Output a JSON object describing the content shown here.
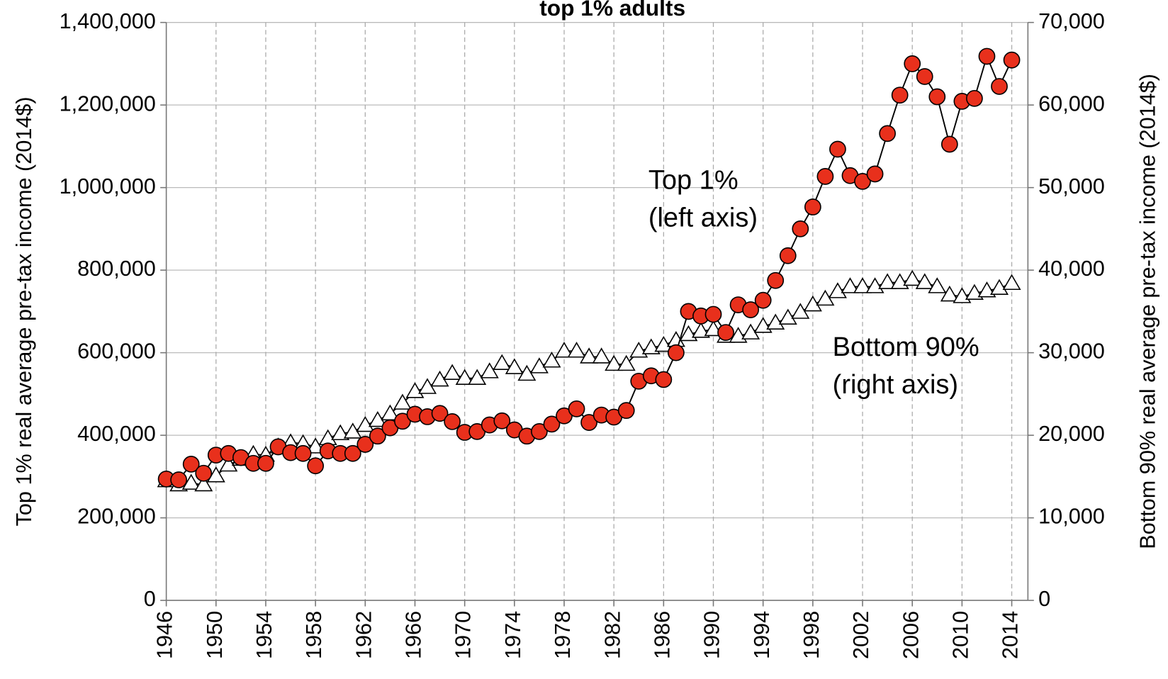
{
  "chart_data": {
    "type": "line",
    "title": "top 1% adults",
    "y_label": "Top 1% real average pre-tax income (2014$)",
    "y2_label": "Bottom 90% real average pre-tax income (2014$)",
    "x": [
      1946,
      1947,
      1948,
      1949,
      1950,
      1951,
      1952,
      1953,
      1954,
      1955,
      1956,
      1957,
      1958,
      1959,
      1960,
      1961,
      1962,
      1963,
      1964,
      1965,
      1966,
      1967,
      1968,
      1969,
      1970,
      1971,
      1972,
      1973,
      1974,
      1975,
      1976,
      1977,
      1978,
      1979,
      1980,
      1981,
      1982,
      1983,
      1984,
      1985,
      1986,
      1987,
      1988,
      1989,
      1990,
      1991,
      1992,
      1993,
      1994,
      1995,
      1996,
      1997,
      1998,
      1999,
      2000,
      2001,
      2002,
      2003,
      2004,
      2005,
      2006,
      2007,
      2008,
      2009,
      2010,
      2011,
      2012,
      2013,
      2014
    ],
    "series": [
      {
        "name": "Top 1%",
        "color": "#e8301c",
        "marker": "circle",
        "axis": "y",
        "values": [
          294000,
          292000,
          330000,
          308000,
          352000,
          356000,
          346000,
          332000,
          332000,
          372000,
          358000,
          356000,
          326000,
          362000,
          356000,
          356000,
          378000,
          398000,
          418000,
          434000,
          451000,
          445000,
          453000,
          433000,
          407000,
          409000,
          425000,
          435000,
          413000,
          398000,
          409000,
          427000,
          447000,
          464000,
          431000,
          449000,
          444000,
          460000,
          531000,
          544000,
          535000,
          600000,
          700000,
          689000,
          693000,
          649000,
          716000,
          704000,
          727000,
          775000,
          835000,
          900000,
          953000,
          1027000,
          1093000,
          1029000,
          1015000,
          1033000,
          1131000,
          1224000,
          1300000,
          1269000,
          1220000,
          1105000,
          1209000,
          1216000,
          1318000,
          1245000,
          1309000
        ]
      },
      {
        "name": "Bottom 90%",
        "color": "#ffffff",
        "marker": "triangle",
        "axis": "y2",
        "values": [
          14500,
          14000,
          14200,
          14000,
          15100,
          16400,
          17100,
          17700,
          17600,
          18600,
          19100,
          19000,
          18600,
          19600,
          20200,
          20400,
          21200,
          21800,
          22600,
          23900,
          25300,
          25800,
          26700,
          27500,
          26900,
          26900,
          27700,
          28700,
          28200,
          27400,
          28300,
          29000,
          30200,
          30200,
          29500,
          29500,
          28600,
          28600,
          30200,
          30600,
          30900,
          31500,
          32200,
          32600,
          32800,
          32000,
          32000,
          32400,
          33200,
          33600,
          34200,
          34900,
          35800,
          36500,
          37400,
          38000,
          38000,
          38000,
          38500,
          38500,
          38900,
          38500,
          38000,
          37000,
          36800,
          37200,
          37500,
          37800,
          38400
        ]
      }
    ],
    "annotations": [
      {
        "lines": [
          "Top 1%",
          "(left axis)"
        ]
      },
      {
        "lines": [
          "Bottom 90%",
          "(right axis)"
        ]
      }
    ],
    "xlim": [
      1946,
      2015.3
    ],
    "xticks": [
      1946,
      1950,
      1954,
      1958,
      1962,
      1966,
      1970,
      1974,
      1978,
      1982,
      1986,
      1990,
      1994,
      1998,
      2002,
      2006,
      2010,
      2014
    ],
    "ylim": [
      0,
      1400000
    ],
    "yticks": [
      0,
      {
        "value": 200000,
        "label": "200,000"
      },
      {
        "value": 400000,
        "label": "400,000"
      },
      {
        "value": 600000,
        "label": "600,000"
      },
      {
        "value": 800000,
        "label": "800,000"
      },
      {
        "value": 1000000,
        "label": "1,000,000"
      },
      {
        "value": 1200000,
        "label": "1,200,000"
      },
      {
        "value": 1400000,
        "label": "1,400,000"
      }
    ],
    "y2lim": [
      0,
      70000
    ],
    "y2ticks": [
      0,
      {
        "value": 10000,
        "label": "10,000"
      },
      {
        "value": 20000,
        "label": "20,000"
      },
      {
        "value": 30000,
        "label": "30,000"
      },
      {
        "value": 40000,
        "label": "40,000"
      },
      {
        "value": 50000,
        "label": "50,000"
      },
      {
        "value": 60000,
        "label": "60,000"
      },
      {
        "value": 70000,
        "label": "70,000"
      }
    ],
    "grid": true
  }
}
